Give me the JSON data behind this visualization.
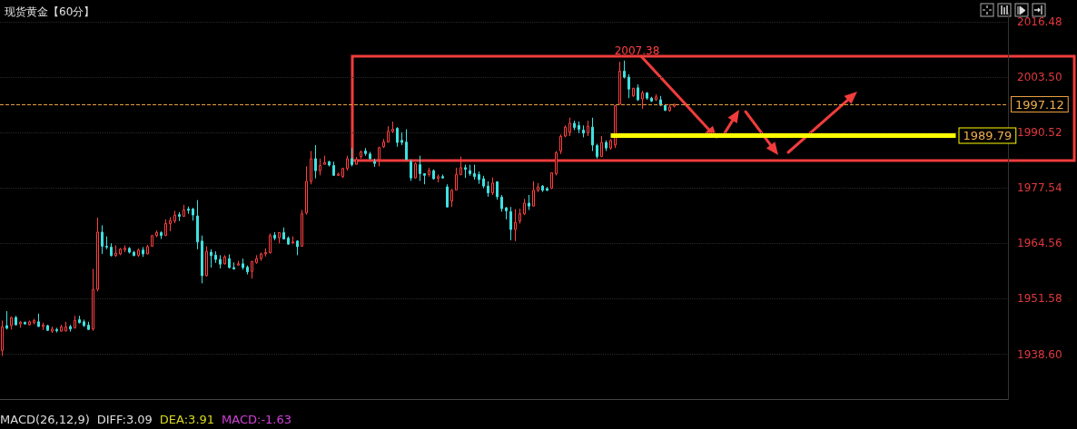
{
  "chart_data": {
    "type": "candlestick",
    "title": "现货黄金【60分】",
    "categories": [
      null,
      null,
      null,
      null,
      null,
      null,
      null,
      null,
      null,
      null,
      null,
      null,
      null,
      null,
      null,
      null,
      null,
      null,
      null,
      null,
      null,
      null,
      null,
      null,
      null,
      null,
      null,
      null,
      null,
      null,
      null,
      null,
      null,
      null,
      null,
      null,
      null,
      null,
      null,
      null,
      null,
      null,
      null,
      null,
      null,
      null,
      null,
      null,
      null,
      null,
      null,
      null,
      null,
      null,
      null,
      null,
      null,
      null,
      null,
      null,
      null,
      null,
      null,
      null,
      null,
      null,
      null,
      null,
      null,
      null,
      null,
      null,
      null,
      null,
      null,
      null,
      null,
      null,
      null,
      null,
      null,
      null,
      null,
      null,
      null,
      null,
      null,
      null,
      null,
      null,
      null,
      null,
      null,
      null,
      null,
      null,
      null,
      null,
      null,
      null,
      null,
      null,
      null,
      null,
      null,
      null,
      null,
      null,
      null,
      null,
      null,
      null,
      null,
      null,
      null,
      null,
      null,
      null,
      null,
      null,
      null,
      null,
      null,
      null,
      null,
      null,
      null,
      null,
      null,
      null,
      null,
      null,
      null,
      null,
      null,
      null,
      null,
      null,
      null,
      null,
      null,
      null,
      null,
      null,
      null,
      null,
      null,
      null,
      null,
      null,
      null,
      null,
      null,
      null,
      null,
      null,
      null,
      null,
      null,
      null,
      null,
      null,
      null,
      null,
      null,
      null,
      null,
      null,
      null,
      null,
      null,
      null,
      null,
      null,
      null,
      null,
      null,
      null,
      null,
      null,
      null,
      null,
      null,
      null,
      null,
      null,
      null,
      null,
      null,
      null,
      null,
      null,
      null,
      null,
      null,
      null,
      null,
      null,
      null,
      null,
      null,
      null,
      null,
      null,
      null,
      null,
      null,
      null,
      null,
      null,
      null,
      null,
      null,
      null,
      null,
      null,
      null,
      null,
      null,
      null,
      null,
      null
    ],
    "ohlc": [
      [
        1939.5,
        1946.5,
        1938.2,
        1945.0
      ],
      [
        1945.3,
        1948.7,
        1944.4,
        1944.7
      ],
      [
        1945.3,
        1947.4,
        1944.4,
        1947.2
      ],
      [
        1947.2,
        1947.6,
        1945.3,
        1945.5
      ],
      [
        1945.7,
        1946.4,
        1944.8,
        1946.1
      ],
      [
        1946.1,
        1946.2,
        1945.6,
        1945.7
      ],
      [
        1945.5,
        1946.5,
        1945.3,
        1946.2
      ],
      [
        1946.0,
        1946.9,
        1945.6,
        1946.5
      ],
      [
        1946.2,
        1948.1,
        1945.0,
        1945.1
      ],
      [
        1945.1,
        1946.0,
        1944.3,
        1945.4
      ],
      [
        1945.3,
        1945.5,
        1944.1,
        1944.2
      ],
      [
        1944.0,
        1945.1,
        1943.6,
        1944.5
      ],
      [
        1944.4,
        1944.8,
        1943.7,
        1944.1
      ],
      [
        1944.0,
        1945.5,
        1943.9,
        1945.0
      ],
      [
        1944.1,
        1946.2,
        1943.9,
        1945.0
      ],
      [
        1945.1,
        1945.5,
        1943.9,
        1944.5
      ],
      [
        1944.8,
        1947.6,
        1944.6,
        1946.5
      ],
      [
        1946.7,
        1947.6,
        1945.8,
        1946.0
      ],
      [
        1946.2,
        1946.7,
        1945.0,
        1945.3
      ],
      [
        1945.4,
        1946.2,
        1944.3,
        1944.4
      ],
      [
        1944.5,
        1958.6,
        1944.1,
        1953.8
      ],
      [
        1953.8,
        1970.6,
        1953.3,
        1967.2
      ],
      [
        1967.2,
        1968.8,
        1962.1,
        1963.9
      ],
      [
        1963.9,
        1966.2,
        1963.2,
        1963.7
      ],
      [
        1963.7,
        1964.6,
        1961.5,
        1961.7
      ],
      [
        1961.7,
        1964.1,
        1961.4,
        1962.3
      ],
      [
        1962.1,
        1963.5,
        1961.8,
        1963.2
      ],
      [
        1963.1,
        1964.1,
        1962.5,
        1963.4
      ],
      [
        1963.4,
        1963.7,
        1962.2,
        1962.5
      ],
      [
        1962.5,
        1962.8,
        1961.6,
        1961.7
      ],
      [
        1961.8,
        1963.4,
        1961.4,
        1963.0
      ],
      [
        1963.0,
        1963.7,
        1961.4,
        1962.1
      ],
      [
        1962.1,
        1964.2,
        1962.0,
        1963.8
      ],
      [
        1963.9,
        1966.5,
        1963.8,
        1966.4
      ],
      [
        1966.4,
        1967.6,
        1966.0,
        1967.1
      ],
      [
        1967.1,
        1967.4,
        1965.6,
        1966.4
      ],
      [
        1966.4,
        1970.2,
        1966.3,
        1969.2
      ],
      [
        1969.2,
        1970.7,
        1967.4,
        1969.9
      ],
      [
        1969.8,
        1972.2,
        1969.3,
        1971.2
      ],
      [
        1971.3,
        1971.9,
        1969.8,
        1970.9
      ],
      [
        1970.9,
        1973.6,
        1970.8,
        1972.4
      ],
      [
        1972.6,
        1973.2,
        1971.5,
        1972.3
      ],
      [
        1972.6,
        1972.9,
        1969.9,
        1971.2
      ],
      [
        1971.0,
        1974.7,
        1963.2,
        1964.9
      ],
      [
        1965.1,
        1966.4,
        1955.2,
        1957.0
      ],
      [
        1957.0,
        1963.9,
        1956.8,
        1962.7
      ],
      [
        1962.5,
        1963.2,
        1958.9,
        1961.7
      ],
      [
        1961.8,
        1962.7,
        1960.0,
        1960.8
      ],
      [
        1960.8,
        1961.8,
        1958.7,
        1959.7
      ],
      [
        1959.8,
        1961.8,
        1959.6,
        1961.4
      ],
      [
        1961.0,
        1962.0,
        1958.7,
        1958.9
      ],
      [
        1958.9,
        1960.1,
        1958.4,
        1958.6
      ],
      [
        1959.5,
        1960.5,
        1959.3,
        1959.8
      ],
      [
        1959.8,
        1961.0,
        1958.4,
        1958.9
      ],
      [
        1959.0,
        1959.4,
        1957.3,
        1957.9
      ],
      [
        1958.0,
        1960.5,
        1956.3,
        1960.3
      ],
      [
        1960.1,
        1961.8,
        1959.8,
        1961.0
      ],
      [
        1961.0,
        1962.4,
        1960.5,
        1962.1
      ],
      [
        1962.1,
        1963.4,
        1961.5,
        1962.4
      ],
      [
        1962.4,
        1966.9,
        1962.2,
        1966.4
      ],
      [
        1966.5,
        1967.2,
        1965.3,
        1965.8
      ],
      [
        1965.9,
        1967.2,
        1964.6,
        1967.1
      ],
      [
        1967.1,
        1968.3,
        1965.5,
        1965.6
      ],
      [
        1965.8,
        1966.2,
        1964.2,
        1964.4
      ],
      [
        1964.7,
        1966.2,
        1964.4,
        1964.9
      ],
      [
        1965.1,
        1965.3,
        1961.8,
        1963.8
      ],
      [
        1963.9,
        1972.4,
        1963.8,
        1971.5
      ],
      [
        1971.7,
        1982.6,
        1971.3,
        1979.1
      ],
      [
        1979.1,
        1986.2,
        1978.4,
        1984.4
      ],
      [
        1984.4,
        1987.6,
        1979.8,
        1981.6
      ],
      [
        1981.6,
        1984.4,
        1980.5,
        1982.8
      ],
      [
        1983.1,
        1985.1,
        1983.0,
        1983.5
      ],
      [
        1983.7,
        1983.9,
        1982.6,
        1982.9
      ],
      [
        1982.8,
        1983.7,
        1980.4,
        1980.5
      ],
      [
        1980.5,
        1981.1,
        1980.4,
        1980.8
      ],
      [
        1980.2,
        1982.3,
        1979.9,
        1982.1
      ],
      [
        1982.1,
        1985.1,
        1981.6,
        1984.4
      ],
      [
        1984.4,
        1986.9,
        1982.6,
        1983.0
      ],
      [
        1983.1,
        1984.8,
        1983.0,
        1984.2
      ],
      [
        1984.9,
        1986.3,
        1984.4,
        1986.0
      ],
      [
        1986.2,
        1986.9,
        1985.1,
        1985.6
      ],
      [
        1985.5,
        1986.0,
        1984.2,
        1984.4
      ],
      [
        1983.7,
        1984.4,
        1982.5,
        1983.3
      ],
      [
        1984.2,
        1987.2,
        1982.6,
        1987.0
      ],
      [
        1987.2,
        1989.0,
        1986.9,
        1988.3
      ],
      [
        1988.3,
        1992.0,
        1988.2,
        1990.8
      ],
      [
        1990.8,
        1993.1,
        1990.4,
        1991.3
      ],
      [
        1991.5,
        1991.8,
        1987.2,
        1988.2
      ],
      [
        1988.7,
        1990.6,
        1987.6,
        1988.2
      ],
      [
        1988.3,
        1991.3,
        1984.1,
        1984.2
      ],
      [
        1983.7,
        1984.2,
        1979.2,
        1979.9
      ],
      [
        1979.9,
        1983.5,
        1979.7,
        1983.2
      ],
      [
        1983.0,
        1985.1,
        1979.2,
        1980.9
      ],
      [
        1980.9,
        1981.0,
        1978.4,
        1980.5
      ],
      [
        1980.7,
        1982.3,
        1980.2,
        1981.6
      ],
      [
        1981.6,
        1981.9,
        1979.5,
        1979.7
      ],
      [
        1979.8,
        1980.7,
        1978.9,
        1980.2
      ],
      [
        1980.2,
        1980.7,
        1979.7,
        1979.9
      ],
      [
        1977.8,
        1978.4,
        1973.0,
        1973.1
      ],
      [
        1974.5,
        1977.3,
        1973.1,
        1977.0
      ],
      [
        1977.1,
        1982.3,
        1977.0,
        1980.7
      ],
      [
        1980.7,
        1984.9,
        1980.5,
        1982.3
      ],
      [
        1982.3,
        1983.0,
        1979.9,
        1981.9
      ],
      [
        1981.6,
        1983.0,
        1980.4,
        1980.9
      ],
      [
        1980.9,
        1983.0,
        1979.5,
        1980.2
      ],
      [
        1980.7,
        1981.4,
        1978.5,
        1979.5
      ],
      [
        1979.7,
        1980.4,
        1977.5,
        1978.0
      ],
      [
        1978.0,
        1979.1,
        1975.5,
        1976.4
      ],
      [
        1976.4,
        1980.0,
        1975.9,
        1978.7
      ],
      [
        1979.0,
        1979.1,
        1974.8,
        1975.5
      ],
      [
        1975.4,
        1975.9,
        1972.0,
        1972.7
      ],
      [
        1972.9,
        1973.1,
        1970.2,
        1972.2
      ],
      [
        1972.0,
        1973.1,
        1965.3,
        1967.8
      ],
      [
        1967.8,
        1972.6,
        1965.1,
        1969.5
      ],
      [
        1969.8,
        1972.7,
        1969.2,
        1971.5
      ],
      [
        1971.5,
        1975.0,
        1971.2,
        1974.0
      ],
      [
        1974.0,
        1975.9,
        1972.4,
        1973.3
      ],
      [
        1973.3,
        1979.1,
        1973.2,
        1977.0
      ],
      [
        1977.0,
        1978.7,
        1976.6,
        1977.8
      ],
      [
        1978.0,
        1978.2,
        1976.6,
        1977.0
      ],
      [
        1977.4,
        1977.8,
        1976.8,
        1977.0
      ],
      [
        1977.5,
        1981.2,
        1977.3,
        1981.1
      ],
      [
        1980.9,
        1986.2,
        1980.5,
        1985.8
      ],
      [
        1986.2,
        1990.1,
        1985.5,
        1989.6
      ],
      [
        1989.7,
        1992.2,
        1989.4,
        1991.8
      ],
      [
        1990.6,
        1994.0,
        1989.7,
        1992.7
      ],
      [
        1992.7,
        1993.3,
        1991.1,
        1991.7
      ],
      [
        1992.2,
        1993.1,
        1990.4,
        1991.3
      ],
      [
        1991.1,
        1992.2,
        1989.4,
        1990.4
      ],
      [
        1990.4,
        1993.3,
        1989.7,
        1992.0
      ],
      [
        1991.8,
        1994.0,
        1986.2,
        1987.6
      ],
      [
        1987.5,
        1987.9,
        1984.4,
        1984.9
      ],
      [
        1984.9,
        1989.7,
        1984.8,
        1988.2
      ],
      [
        1988.2,
        1988.7,
        1986.2,
        1986.9
      ],
      [
        1986.9,
        1989.0,
        1986.5,
        1988.7
      ],
      [
        1987.6,
        1996.9,
        1986.9,
        1996.8
      ],
      [
        1997.2,
        2007.1,
        1997.1,
        2004.9
      ],
      [
        2004.9,
        2007.38,
        2003.2,
        2003.5
      ],
      [
        2003.5,
        2004.2,
        1998.6,
        2000.7
      ],
      [
        1999.1,
        2001.0,
        1998.9,
        2000.9
      ],
      [
        2001.0,
        2001.8,
        1997.9,
        1998.2
      ],
      [
        1998.4,
        2000.3,
        1996.1,
        1999.8
      ],
      [
        1999.8,
        2000.0,
        1998.2,
        1998.6
      ],
      [
        1998.6,
        1998.9,
        1997.7,
        1997.9
      ],
      [
        1998.2,
        1999.5,
        1997.9,
        1998.9
      ],
      [
        1998.2,
        1999.1,
        1996.8,
        1996.9
      ],
      [
        1996.9,
        1997.2,
        1995.6,
        1995.7
      ],
      [
        1995.7,
        1997.2,
        1995.4,
        1996.5
      ],
      [
        1996.7,
        1997.3,
        1996.4,
        1997.12
      ],
      null,
      null,
      null,
      null,
      null,
      null,
      null,
      null,
      null,
      null,
      null,
      null,
      null,
      null,
      null,
      null,
      null,
      null,
      null,
      null,
      null,
      null,
      null,
      null,
      null,
      null,
      null,
      null,
      null,
      null,
      null,
      null,
      null,
      null,
      null,
      null,
      null,
      null,
      null,
      null,
      null,
      null,
      null,
      null,
      null,
      null,
      null,
      null,
      null,
      null,
      null,
      null,
      null,
      null,
      null,
      null,
      null,
      null,
      null,
      null,
      null,
      null,
      null,
      null,
      null,
      null,
      null,
      null,
      null,
      null,
      null,
      null,
      null
    ],
    "colors": [
      "#ff4040",
      "#40e0e0",
      "#ff4040",
      "#40e0e0",
      "#ff4040",
      "#40e0e0",
      "#ff4040",
      "#ff4040",
      "#40e0e0",
      "#ff4040",
      "#40e0e0",
      "#ff4040",
      "#40e0e0",
      "#ff4040",
      "#ff4040",
      "#40e0e0",
      "#ff4040",
      "#40e0e0",
      "#40e0e0",
      "#40e0e0",
      "#ff4040",
      "#ff4040",
      "#40e0e0",
      "#40e0e0",
      "#40e0e0",
      "#ff4040",
      "#ff4040",
      "#ff4040",
      "#40e0e0",
      "#40e0e0",
      "#ff4040",
      "#40e0e0",
      "#ff4040",
      "#ff4040",
      "#ff4040",
      "#40e0e0",
      "#ff4040",
      "#ff4040",
      "#ff4040",
      "#40e0e0",
      "#ff4040",
      "#40e0e0",
      "#40e0e0",
      "#40e0e0",
      "#40e0e0",
      "#ff4040",
      "#40e0e0",
      "#40e0e0",
      "#40e0e0",
      "#ff4040",
      "#40e0e0",
      "#40e0e0",
      "#ff4040",
      "#40e0e0",
      "#40e0e0",
      "#ff4040",
      "#ff4040",
      "#ff4040",
      "#ff4040",
      "#ff4040",
      "#40e0e0",
      "#ff4040",
      "#40e0e0",
      "#40e0e0",
      "#ff4040",
      "#40e0e0",
      "#ff4040",
      "#ff4040",
      "#ff4040",
      "#40e0e0",
      "#ff4040",
      "#ff4040",
      "#40e0e0",
      "#40e0e0",
      "#ff4040",
      "#ff4040",
      "#ff4040",
      "#40e0e0",
      "#ff4040",
      "#ff4040",
      "#40e0e0",
      "#40e0e0",
      "#40e0e0",
      "#ff4040",
      "#ff4040",
      "#ff4040",
      "#ff4040",
      "#40e0e0",
      "#40e0e0",
      "#40e0e0",
      "#40e0e0",
      "#ff4040",
      "#40e0e0",
      "#40e0e0",
      "#ff4040",
      "#40e0e0",
      "#ff4040",
      "#40e0e0",
      "#40e0e0",
      "#ff4040",
      "#ff4040",
      "#ff4040",
      "#40e0e0",
      "#40e0e0",
      "#40e0e0",
      "#40e0e0",
      "#40e0e0",
      "#40e0e0",
      "#ff4040",
      "#40e0e0",
      "#40e0e0",
      "#40e0e0",
      "#40e0e0",
      "#ff4040",
      "#ff4040",
      "#ff4040",
      "#40e0e0",
      "#ff4040",
      "#ff4040",
      "#40e0e0",
      "#40e0e0",
      "#ff4040",
      "#ff4040",
      "#ff4040",
      "#ff4040",
      "#ff4040",
      "#40e0e0",
      "#40e0e0",
      "#40e0e0",
      "#ff4040",
      "#40e0e0",
      "#40e0e0",
      "#ff4040",
      "#40e0e0",
      "#ff4040",
      "#ff4040",
      "#ff4040",
      "#40e0e0",
      "#40e0e0",
      "#ff4040",
      "#40e0e0",
      "#ff4040",
      "#40e0e0",
      "#40e0e0",
      "#ff4040",
      "#40e0e0",
      "#40e0e0",
      "#ff4040",
      "#ff4040",
      null,
      null,
      null,
      null,
      null,
      null,
      null,
      null,
      null,
      null,
      null,
      null,
      null,
      null,
      null,
      null,
      null,
      null,
      null,
      null,
      null,
      null,
      null,
      null,
      null,
      null,
      null,
      null,
      null,
      null,
      null,
      null,
      null,
      null,
      null,
      null,
      null,
      null,
      null,
      null,
      null,
      null,
      null,
      null,
      null,
      null,
      null,
      null,
      null,
      null,
      null,
      null,
      null,
      null,
      null,
      null,
      null,
      null,
      null,
      null,
      null,
      null,
      null,
      null,
      null,
      null,
      null,
      null,
      null,
      null,
      null,
      null,
      null
    ],
    "ylim": [
      1928.1,
      2018.6
    ],
    "yticks": [
      {
        "value": 1938.6,
        "label": "1938.60"
      },
      1951.58,
      1964.56,
      1977.54,
      1990.52,
      {
        "value": 2003.5,
        "label": "2003.50"
      },
      2016.48
    ],
    "grid": "y",
    "tick_labels": "y",
    "ref_lines": [
      {
        "axis": "y",
        "value": 1997.12,
        "label": "1997.12",
        "color": "#e8a040",
        "line_style": "dashed"
      },
      {
        "axis": "y",
        "value": 1989.79,
        "label": "1989.79",
        "color": "#ffff00"
      }
    ],
    "annotations": [
      "2007.38",
      "MACD(26,12,9)",
      "DIFF:3.09",
      "DEA:3.91",
      "MACD:-1.63"
    ]
  }
}
